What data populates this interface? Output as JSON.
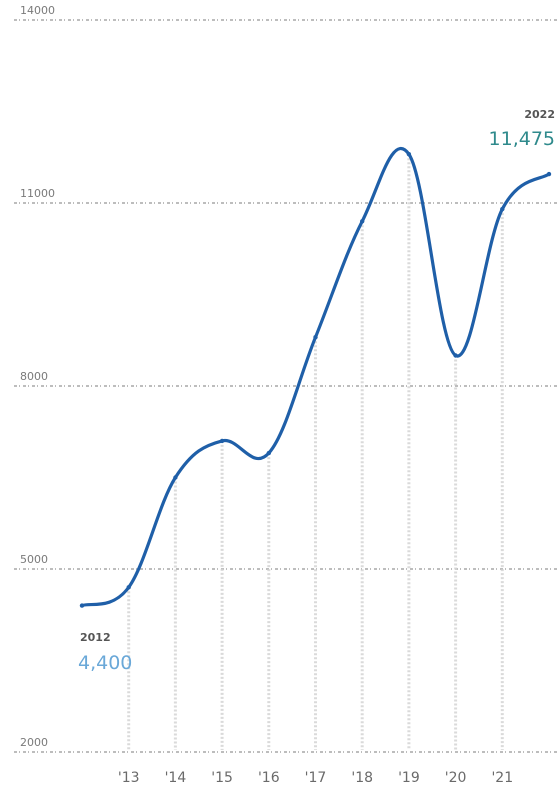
{
  "chart_data": {
    "type": "line",
    "categories": [
      "'13",
      "'14",
      "'15",
      "'16",
      "'17",
      "'18",
      "'19",
      "'20",
      "'21"
    ],
    "x": [
      2012,
      2013,
      2014,
      2015,
      2016,
      2017,
      2018,
      2019,
      2020,
      2021,
      2022
    ],
    "series": [
      {
        "values": [
          4400,
          4700,
          6500,
          7100,
          6900,
          8800,
          10700,
          11800,
          8500,
          10900,
          11475
        ]
      }
    ],
    "y_ticks": [
      {
        "value": 2000,
        "label": "2000"
      },
      {
        "value": 5000,
        "label": "5000"
      },
      {
        "value": 8000,
        "label": "8000"
      },
      {
        "value": 11000,
        "label": "11000"
      },
      {
        "value": 14000,
        "label": "14000"
      }
    ],
    "ylim": [
      2000,
      14000
    ],
    "grid": true,
    "annotations": {
      "start": {
        "year": "2012",
        "value": "4,400"
      },
      "end": {
        "year": "2022",
        "value": "11,475"
      }
    },
    "colors": {
      "line": "#1f5fa8",
      "value_start": "#6aa8d8",
      "value_end": "#2f8a8c",
      "grid": "#8a8a8a"
    }
  }
}
